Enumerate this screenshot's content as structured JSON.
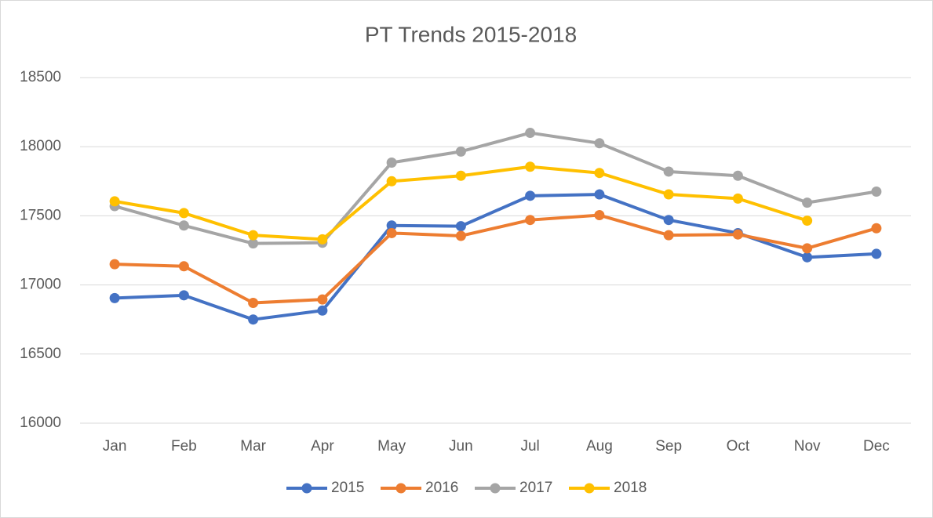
{
  "chart_data": {
    "type": "line",
    "title": "PT Trends 2015-2018",
    "categories": [
      "Jan",
      "Feb",
      "Mar",
      "Apr",
      "May",
      "Jun",
      "Jul",
      "Aug",
      "Sep",
      "Oct",
      "Nov",
      "Dec"
    ],
    "series": [
      {
        "name": "2015",
        "color": "#4472c4",
        "values": [
          16905,
          16925,
          16750,
          16815,
          17430,
          17425,
          17645,
          17655,
          17470,
          17375,
          17200,
          17225
        ]
      },
      {
        "name": "2016",
        "color": "#ed7d31",
        "values": [
          17150,
          17135,
          16870,
          16895,
          17375,
          17355,
          17470,
          17505,
          17360,
          17365,
          17265,
          17410
        ]
      },
      {
        "name": "2017",
        "color": "#a5a5a5",
        "values": [
          17570,
          17430,
          17300,
          17305,
          17885,
          17965,
          18100,
          18025,
          17820,
          17790,
          17595,
          17675
        ]
      },
      {
        "name": "2018",
        "color": "#ffc000",
        "values": [
          17605,
          17520,
          17360,
          17330,
          17750,
          17790,
          17855,
          17810,
          17655,
          17625,
          17465,
          null
        ]
      }
    ],
    "ylim": [
      16000,
      18500
    ],
    "yticks": [
      16000,
      16500,
      17000,
      17500,
      18000,
      18500
    ],
    "grid": true,
    "legend": "bottom"
  }
}
